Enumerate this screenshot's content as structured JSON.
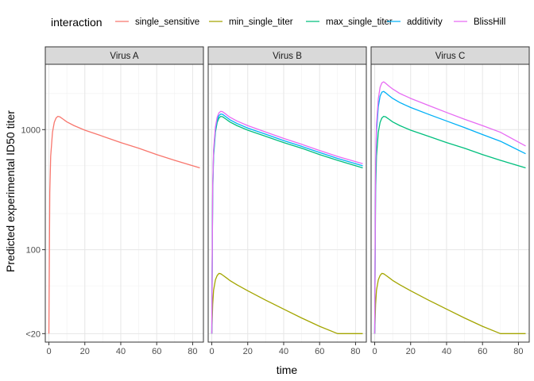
{
  "chart_data": {
    "type": "line",
    "xlabel": "time",
    "ylabel": "Predicted experimental ID50 titer",
    "y_scale": "log",
    "xlim": [
      -2,
      86
    ],
    "ylim": [
      17,
      3500
    ],
    "x_ticks": [
      0,
      20,
      40,
      60,
      80
    ],
    "y_ticks": [
      {
        "value": 20,
        "label": "<20"
      },
      {
        "value": 100,
        "label": "100"
      },
      {
        "value": 1000,
        "label": "1000"
      }
    ],
    "grid": true,
    "legend": {
      "title": "interaction",
      "placement": "top",
      "entries": [
        {
          "name": "single_sensitive",
          "color": "#F8766D"
        },
        {
          "name": "min_single_titer",
          "color": "#A3A500"
        },
        {
          "name": "max_single_titer",
          "color": "#00BF7D"
        },
        {
          "name": "additivity",
          "color": "#00B0F6"
        },
        {
          "name": "BlissHill",
          "color": "#E76BF3"
        }
      ]
    },
    "panels": [
      {
        "title": "Virus A",
        "series": [
          {
            "name": "single_sensitive",
            "color": "#F8766D",
            "x": [
              0,
              0.5,
              1,
              2,
              3,
              4,
              5,
              6,
              8,
              10,
              14,
              20,
              30,
              40,
              50,
              60,
              70,
              84
            ],
            "y": [
              20,
              300,
              600,
              950,
              1150,
              1250,
              1290,
              1280,
              1220,
              1160,
              1080,
              990,
              880,
              780,
              700,
              620,
              555,
              480
            ]
          }
        ]
      },
      {
        "title": "Virus B",
        "series": [
          {
            "name": "min_single_titer",
            "color": "#A3A500",
            "x": [
              0,
              0.5,
              1,
              2,
              3,
              4,
              5,
              6,
              8,
              10,
              14,
              20,
              30,
              40,
              50,
              60,
              70,
              72,
              84
            ],
            "y": [
              20,
              35,
              46,
              56,
              61,
              63.5,
              63,
              61.5,
              58.5,
              55.5,
              51,
              45.5,
              38,
              32,
              27,
              23,
              20,
              20,
              20
            ]
          },
          {
            "name": "max_single_titer",
            "color": "#00BF7D",
            "x": [
              0,
              0.5,
              1,
              2,
              3,
              4,
              5,
              6,
              8,
              10,
              14,
              20,
              30,
              40,
              50,
              60,
              70,
              84
            ],
            "y": [
              20,
              300,
              600,
              950,
              1150,
              1250,
              1290,
              1280,
              1220,
              1160,
              1080,
              990,
              880,
              780,
              700,
              620,
              555,
              480
            ]
          },
          {
            "name": "additivity",
            "color": "#00B0F6",
            "x": [
              0,
              0.5,
              1,
              2,
              3,
              4,
              5,
              6,
              8,
              10,
              14,
              20,
              30,
              40,
              50,
              60,
              70,
              84
            ],
            "y": [
              20,
              320,
              640,
              1000,
              1210,
              1310,
              1350,
              1340,
              1275,
              1210,
              1125,
              1030,
              915,
              810,
              725,
              645,
              575,
              500
            ]
          },
          {
            "name": "BlissHill",
            "color": "#E76BF3",
            "x": [
              0,
              0.5,
              1,
              2,
              3,
              4,
              5,
              6,
              8,
              10,
              14,
              20,
              30,
              40,
              50,
              60,
              70,
              84
            ],
            "y": [
              20,
              340,
              680,
              1050,
              1270,
              1380,
              1420,
              1410,
              1340,
              1270,
              1180,
              1080,
              955,
              845,
              755,
              670,
              598,
              520
            ]
          }
        ]
      },
      {
        "title": "Virus C",
        "series": [
          {
            "name": "min_single_titer",
            "color": "#A3A500",
            "x": [
              0,
              0.5,
              1,
              2,
              3,
              4,
              5,
              6,
              8,
              10,
              14,
              20,
              30,
              40,
              50,
              60,
              70,
              72,
              84
            ],
            "y": [
              20,
              35,
              46,
              56,
              61,
              63.5,
              63,
              61.5,
              58.5,
              55.5,
              51,
              45.5,
              38,
              32,
              27,
              23,
              20,
              20,
              20
            ]
          },
          {
            "name": "max_single_titer",
            "color": "#00BF7D",
            "x": [
              0,
              0.5,
              1,
              2,
              3,
              4,
              5,
              6,
              8,
              10,
              14,
              20,
              30,
              40,
              50,
              60,
              70,
              84
            ],
            "y": [
              20,
              300,
              600,
              950,
              1150,
              1250,
              1290,
              1280,
              1220,
              1160,
              1080,
              990,
              880,
              780,
              700,
              620,
              555,
              480
            ]
          },
          {
            "name": "additivity",
            "color": "#00B0F6",
            "x": [
              0,
              0.5,
              1,
              2,
              3,
              4,
              5,
              6,
              8,
              10,
              14,
              20,
              30,
              40,
              50,
              60,
              70,
              84
            ],
            "y": [
              20,
              450,
              950,
              1550,
              1900,
              2050,
              2080,
              2030,
              1920,
              1820,
              1680,
              1530,
              1340,
              1180,
              1040,
              910,
              800,
              630
            ]
          },
          {
            "name": "BlissHill",
            "color": "#E76BF3",
            "x": [
              0,
              0.5,
              1,
              2,
              3,
              4,
              5,
              6,
              8,
              10,
              14,
              20,
              30,
              40,
              50,
              60,
              70,
              84
            ],
            "y": [
              20,
              500,
              1100,
              1800,
              2250,
              2450,
              2500,
              2440,
              2300,
              2180,
              2000,
              1820,
              1590,
              1390,
              1220,
              1080,
              950,
              730
            ]
          }
        ]
      }
    ]
  }
}
